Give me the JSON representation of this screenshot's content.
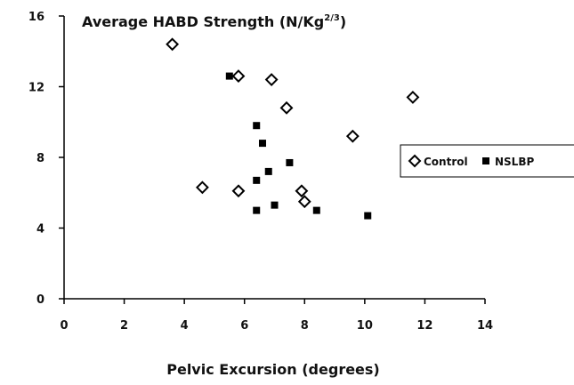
{
  "chart_data": {
    "type": "scatter",
    "title": "",
    "ylabel": "Average HABD Strength (N/Kg",
    "ylabel_sup": "2/3",
    "ylabel_end": ")",
    "xlabel": "Pelvic Excursion (degrees)",
    "xlim": [
      0,
      14
    ],
    "ylim": [
      0,
      16
    ],
    "xticks": [
      "0",
      "2",
      "4",
      "6",
      "8",
      "10",
      "12",
      "14"
    ],
    "yticks": [
      "0",
      "4",
      "8",
      "12",
      "16"
    ],
    "grid": false,
    "legend_position": "right",
    "series": [
      {
        "name": "Control",
        "marker": "open-diamond",
        "color": "#000000",
        "points": [
          {
            "x": 3.6,
            "y": 14.4
          },
          {
            "x": 5.8,
            "y": 12.6
          },
          {
            "x": 6.9,
            "y": 12.4
          },
          {
            "x": 11.6,
            "y": 11.4
          },
          {
            "x": 7.4,
            "y": 10.8
          },
          {
            "x": 9.6,
            "y": 9.2
          },
          {
            "x": 4.6,
            "y": 6.3
          },
          {
            "x": 5.8,
            "y": 6.1
          },
          {
            "x": 7.9,
            "y": 6.1
          },
          {
            "x": 8.0,
            "y": 5.5
          }
        ]
      },
      {
        "name": "NSLBP",
        "marker": "filled-square",
        "color": "#000000",
        "points": [
          {
            "x": 5.5,
            "y": 12.6
          },
          {
            "x": 6.4,
            "y": 9.8
          },
          {
            "x": 6.6,
            "y": 8.8
          },
          {
            "x": 7.5,
            "y": 7.7
          },
          {
            "x": 6.8,
            "y": 7.2
          },
          {
            "x": 6.4,
            "y": 6.7
          },
          {
            "x": 7.0,
            "y": 5.3
          },
          {
            "x": 6.4,
            "y": 5.0
          },
          {
            "x": 8.4,
            "y": 5.0
          },
          {
            "x": 10.1,
            "y": 4.7
          }
        ]
      }
    ]
  }
}
